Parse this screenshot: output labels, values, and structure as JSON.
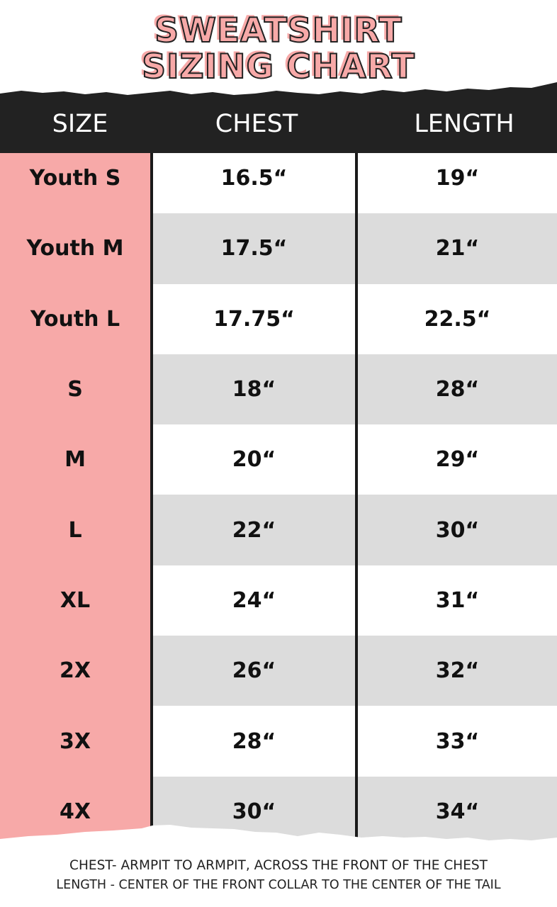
{
  "title": {
    "line1": "SWEATSHIRT",
    "line2": "SIZING CHART"
  },
  "colors": {
    "accent_pink": "#f7a9a8",
    "header_black": "#222222",
    "stripe_gray": "#dcdcdc"
  },
  "table": {
    "headers": [
      "SIZE",
      "CHEST",
      "LENGTH"
    ],
    "rows": [
      {
        "size": "Youth S",
        "chest": "16.5“",
        "length": "19“"
      },
      {
        "size": "Youth M",
        "chest": "17.5“",
        "length": "21“"
      },
      {
        "size": "Youth L",
        "chest": "17.75“",
        "length": "22.5“"
      },
      {
        "size": "S",
        "chest": "18“",
        "length": "28“"
      },
      {
        "size": "M",
        "chest": "20“",
        "length": "29“"
      },
      {
        "size": "L",
        "chest": "22“",
        "length": "30“"
      },
      {
        "size": "XL",
        "chest": "24“",
        "length": "31“"
      },
      {
        "size": "2X",
        "chest": "26“",
        "length": "32“"
      },
      {
        "size": "3X",
        "chest": "28“",
        "length": "33“"
      },
      {
        "size": "4X",
        "chest": "30“",
        "length": "34“"
      }
    ]
  },
  "notes": {
    "chest": "CHEST- ARMPIT TO ARMPIT, ACROSS THE FRONT OF THE CHEST",
    "length": "LENGTH - CENTER OF THE FRONT COLLAR TO THE CENTER OF THE TAIL"
  }
}
